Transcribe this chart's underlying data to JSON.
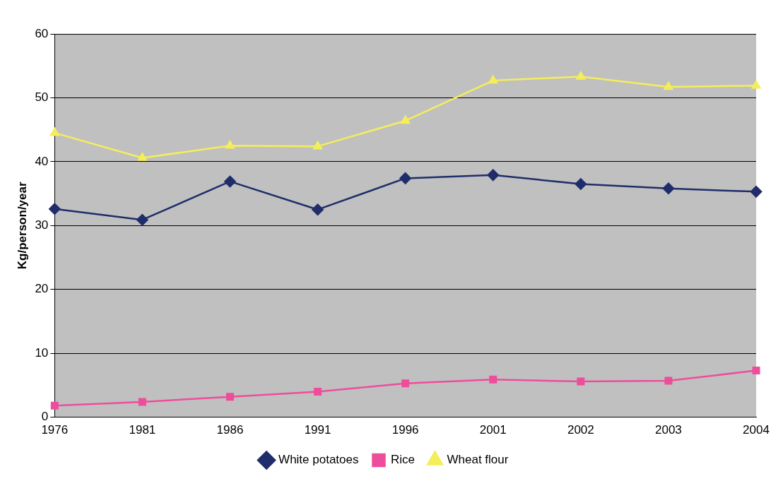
{
  "chart_data": {
    "type": "line",
    "ylabel": "Kg/person/year",
    "categories": [
      "1976",
      "1981",
      "1986",
      "1991",
      "1996",
      "2001",
      "2002",
      "2003",
      "2004"
    ],
    "series": [
      {
        "name": "White potatoes",
        "color": "#1f2d6b",
        "marker": "diamond",
        "values": [
          32.6,
          30.9,
          36.9,
          32.5,
          37.4,
          37.9,
          36.5,
          35.8,
          35.3
        ]
      },
      {
        "name": "Rice",
        "color": "#ee4d9b",
        "marker": "square",
        "values": [
          1.8,
          2.4,
          3.2,
          4.0,
          5.3,
          5.9,
          5.6,
          5.7,
          7.3
        ]
      },
      {
        "name": "Wheat flour",
        "color": "#f4ee5a",
        "marker": "triangle",
        "values": [
          44.5,
          40.6,
          42.5,
          42.4,
          46.4,
          52.7,
          53.3,
          51.7,
          51.9
        ]
      }
    ],
    "ylim": [
      0,
      60
    ],
    "yticks": [
      0,
      10,
      20,
      30,
      40,
      50,
      60
    ],
    "grid": "y",
    "legend": "bottom"
  }
}
